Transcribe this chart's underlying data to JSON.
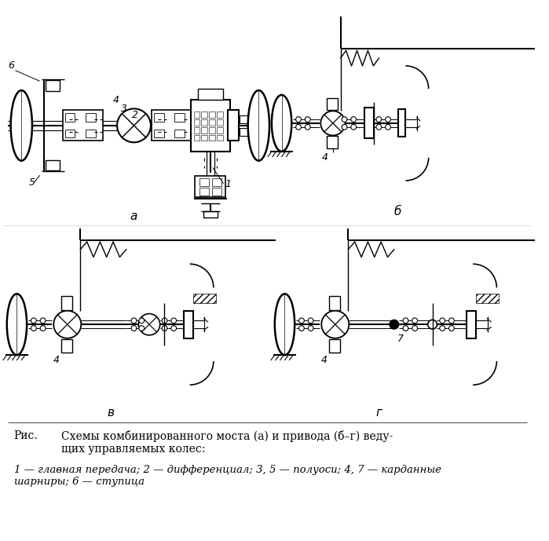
{
  "caption_rus": "Рис.",
  "caption_text": "Схемы комбинированного моста (а) и привода (б–г) веду-\nщих управляемых колес:",
  "legend_text": "1 — главная передача; 2 — дифференциал; 3, 5 — полуоси; 4, 7 — карданные\nшарниры; 6 — ступица",
  "label_a": "а",
  "label_b": "б",
  "label_v": "в",
  "label_g": "г",
  "bg_color": "#ffffff",
  "fig_width": 6.99,
  "fig_height": 6.89,
  "dpi": 100
}
